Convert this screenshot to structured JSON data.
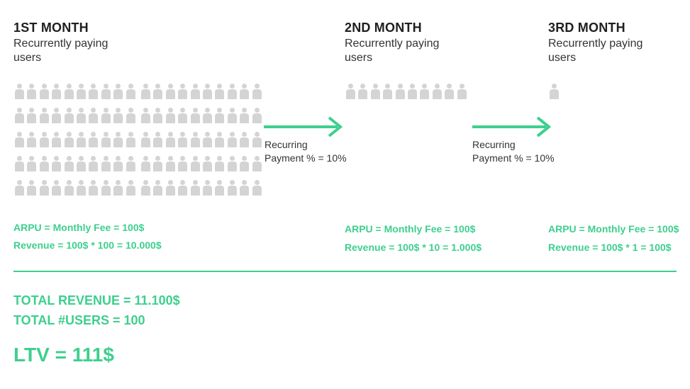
{
  "months": [
    {
      "title": "1ST MONTH",
      "subtitle": "Recurrently paying users",
      "users": 100,
      "arpu": "ARPU = Monthly Fee = 100$",
      "revenue": "Revenue = 100$ * 100 = 10.000$"
    },
    {
      "title": "2ND MONTH",
      "subtitle": "Recurrently paying users",
      "users": 10,
      "arpu": "ARPU = Monthly Fee = 100$",
      "revenue": "Revenue = 100$ * 10 = 1.000$"
    },
    {
      "title": "3RD MONTH",
      "subtitle": "Recurrently paying users",
      "users": 1,
      "arpu": "ARPU = Monthly Fee = 100$",
      "revenue": "Revenue = 100$ * 1 = 100$"
    }
  ],
  "arrows": [
    {
      "line1": "Recurring",
      "line2": "Payment % = 10%"
    },
    {
      "line1": "Recurring",
      "line2": "Payment % = 10%"
    }
  ],
  "totals": {
    "revenue": "TOTAL REVENUE = 11.100$",
    "users": "TOTAL #USERS = 100",
    "ltv": "LTV = 111$"
  },
  "colors": {
    "accent": "#3ecf8e",
    "person": "#d4d4d4"
  }
}
